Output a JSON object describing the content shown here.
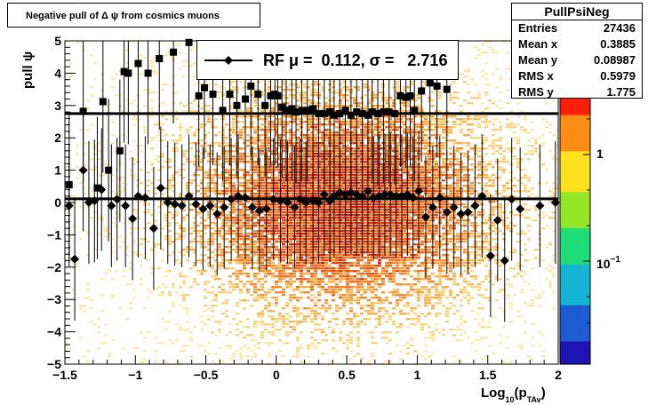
{
  "title": "Negative pull of Δ ψ from cosmics muons",
  "stats": {
    "name": "PullPsiNeg",
    "rows": [
      {
        "label": "Entries",
        "value": "27436"
      },
      {
        "label": "Mean x",
        "value": "0.3885"
      },
      {
        "label": "Mean y",
        "value": "0.08987"
      },
      {
        "label": "RMS x",
        "value": "0.5979"
      },
      {
        "label": "RMS y",
        "value": "1.775"
      }
    ]
  },
  "legend": {
    "text": "RF μ =  0.112, σ =   2.716"
  },
  "colorbar": {
    "labels": [
      "1",
      "10⁻¹"
    ]
  },
  "chart_data": {
    "type": "scatter",
    "xlabel": "Log₁₀(p_TAv)",
    "ylabel": "pull ψ",
    "xlim": [
      -1.5,
      2
    ],
    "ylim": [
      -5,
      5
    ],
    "x_ticks": [
      -1.5,
      -1,
      -0.5,
      0,
      0.5,
      1,
      1.5,
      2
    ],
    "x_tick_labels": [
      "−1.5",
      "−1",
      "−0.5",
      "0",
      "0.5",
      "1",
      "1.5",
      "2"
    ],
    "y_ticks": [
      -5,
      -4,
      -3,
      -2,
      -1,
      0,
      1,
      2,
      3,
      4,
      5
    ],
    "y_tick_labels": [
      "−5",
      "−4",
      "−3",
      "−2",
      "−1",
      "0",
      "1",
      "2",
      "3",
      "4",
      "5"
    ],
    "mu": 0.112,
    "sigma": 2.716,
    "series": [
      {
        "marker": "square",
        "x": [
          -1.47,
          -1.37,
          -1.27,
          -1.23,
          -1.19,
          -1.11,
          -1.08,
          -1.05,
          -0.98,
          -0.91,
          -0.83,
          -0.73,
          -0.62,
          -0.55,
          -0.51,
          -0.45,
          -0.38,
          -0.33,
          -0.28,
          -0.22,
          -0.18,
          -0.13,
          -0.08,
          -0.04,
          -0.01,
          0.01,
          0.04,
          0.07,
          0.11,
          0.14,
          0.18,
          0.22,
          0.26,
          0.3,
          0.34,
          0.38,
          0.41,
          0.45,
          0.49,
          0.53,
          0.57,
          0.61,
          0.65,
          0.68,
          0.72,
          0.76,
          0.8,
          0.84,
          0.88,
          0.92,
          0.95,
          0.98,
          1.03,
          1.09,
          1.14,
          1.21
        ],
        "y": [
          0.55,
          2.82,
          0.45,
          3.12,
          1.0,
          1.6,
          4.05,
          4.0,
          4.3,
          4.0,
          4.45,
          4.65,
          4.95,
          3.3,
          3.55,
          3.35,
          2.85,
          3.35,
          3.0,
          3.2,
          3.6,
          3.35,
          3.0,
          3.3,
          3.35,
          3.3,
          2.95,
          2.85,
          2.9,
          2.8,
          2.85,
          2.85,
          2.9,
          2.75,
          2.75,
          2.8,
          2.7,
          2.75,
          2.85,
          2.7,
          2.8,
          2.75,
          2.7,
          2.8,
          2.75,
          2.8,
          2.8,
          2.75,
          3.3,
          3.25,
          3.3,
          2.85,
          3.45,
          3.7,
          3.6,
          3.5
        ]
      },
      {
        "marker": "diamond",
        "x": [
          -1.47,
          -1.43,
          -1.37,
          -1.33,
          -1.29,
          -1.24,
          -1.17,
          -1.13,
          -1.07,
          -1.02,
          -0.98,
          -0.93,
          -0.87,
          -0.82,
          -0.77,
          -0.72,
          -0.67,
          -0.62,
          -0.57,
          -0.52,
          -0.47,
          -0.42,
          -0.37,
          -0.32,
          -0.27,
          -0.22,
          -0.17,
          -0.12,
          -0.07,
          -0.02,
          0.03,
          0.08,
          0.13,
          0.17,
          0.21,
          0.26,
          0.3,
          0.34,
          0.38,
          0.41,
          0.45,
          0.49,
          0.53,
          0.57,
          0.61,
          0.65,
          0.69,
          0.73,
          0.77,
          0.81,
          0.85,
          0.89,
          0.93,
          0.97,
          1.01,
          1.06,
          1.11,
          1.16,
          1.21,
          1.26,
          1.31,
          1.36,
          1.41,
          1.46,
          1.52,
          1.57,
          1.62,
          1.67,
          1.73,
          1.87,
          1.98
        ],
        "y": [
          -0.1,
          -1.75,
          1.0,
          0.0,
          0.05,
          0.4,
          -0.1,
          0.1,
          -0.1,
          -0.5,
          0.2,
          0.15,
          -0.8,
          0.45,
          0.0,
          -0.05,
          -0.1,
          0.2,
          -0.05,
          -0.2,
          -0.1,
          -0.35,
          -0.15,
          0.1,
          0.2,
          0.15,
          -0.15,
          -0.25,
          -0.2,
          0.1,
          0.05,
          0.0,
          -0.15,
          0.1,
          0.0,
          0.05,
          0.0,
          0.25,
          0.05,
          0.2,
          0.3,
          0.25,
          0.3,
          0.25,
          0.2,
          0.35,
          0.15,
          0.2,
          0.25,
          0.25,
          0.2,
          0.2,
          0.25,
          0.15,
          0.35,
          -0.45,
          -0.15,
          0.15,
          -0.3,
          -0.15,
          -0.35,
          -0.3,
          -0.1,
          0.2,
          -1.65,
          -0.55,
          -1.8,
          0.1,
          -0.2,
          -0.1,
          0.0
        ]
      }
    ],
    "fit_lines": [
      0.112,
      2.75
    ]
  }
}
